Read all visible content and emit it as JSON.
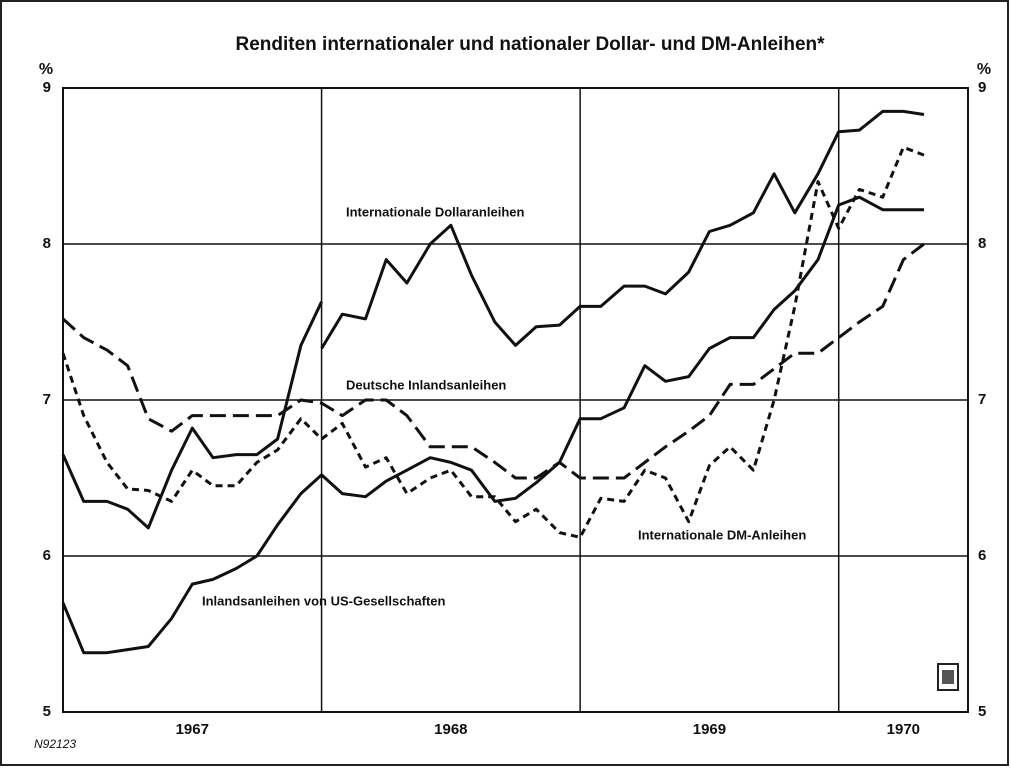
{
  "chart_data": {
    "type": "line",
    "title": "Renditen internationaler und nationaler Dollar- und DM-Anleihen*",
    "y_unit": "%",
    "note": "N92123",
    "xlim": [
      1967,
      1970.5
    ],
    "xticks": [
      {
        "value": 1967.5,
        "label": "1967"
      },
      {
        "value": 1968.5,
        "label": "1968"
      },
      {
        "value": 1969.5,
        "label": "1969"
      },
      {
        "value": 1970.25,
        "label": "1970"
      }
    ],
    "xgrid": [
      1968,
      1969,
      1970
    ],
    "ylim": [
      5,
      9
    ],
    "yticks": [
      5,
      6,
      7,
      8,
      9
    ],
    "grid": true,
    "x": [
      1967,
      1967.08,
      1967.17,
      1967.25,
      1967.33,
      1967.42,
      1967.5,
      1967.58,
      1967.67,
      1967.75,
      1967.83,
      1967.92,
      1968,
      1968.08,
      1968.17,
      1968.25,
      1968.33,
      1968.42,
      1968.5,
      1968.58,
      1968.67,
      1968.75,
      1968.83,
      1968.92,
      1969,
      1969.08,
      1969.17,
      1969.25,
      1969.33,
      1969.42,
      1969.5,
      1969.58,
      1969.67,
      1969.75,
      1969.83,
      1969.92,
      1970,
      1970.08,
      1970.17,
      1970.25,
      1970.33
    ],
    "series": [
      {
        "name": "Internationale Dollaranleihen",
        "color": "#111111",
        "style": "solid",
        "x": [
          1967,
          1967.08,
          1967.17,
          1967.25,
          1967.33,
          1967.42,
          1967.5,
          1967.58,
          1967.67,
          1967.75,
          1967.83,
          1967.92,
          1968,
          null,
          1968,
          1968.08,
          1968.17,
          1968.25,
          1968.33,
          1968.42,
          1968.5,
          1968.58,
          1968.67,
          1968.75,
          1968.83,
          1968.92,
          1969,
          1969.08,
          1969.17,
          1969.25,
          1969.33,
          1969.42,
          1969.5,
          1969.58,
          1969.67,
          1969.75,
          1969.83,
          1969.92,
          1970,
          1970.08,
          1970.17,
          1970.25,
          1970.33
        ],
        "values": [
          6.65,
          6.35,
          6.35,
          6.3,
          6.18,
          6.55,
          6.82,
          6.63,
          6.65,
          6.65,
          6.75,
          7.35,
          7.63,
          null,
          7.33,
          7.55,
          7.52,
          7.9,
          7.75,
          8.0,
          8.12,
          7.8,
          7.5,
          7.35,
          7.47,
          7.48,
          7.6,
          7.6,
          7.73,
          7.73,
          7.68,
          7.82,
          8.08,
          8.12,
          8.2,
          8.45,
          8.2,
          8.45,
          8.72,
          8.73,
          8.85,
          8.85,
          8.83
        ]
      },
      {
        "name": "Inlandsanleihen von US-Gesellschaften",
        "color": "#111111",
        "style": "solid",
        "values": [
          5.7,
          5.38,
          5.38,
          5.4,
          5.42,
          5.6,
          5.82,
          5.85,
          5.92,
          6.0,
          6.2,
          6.4,
          6.52,
          6.4,
          6.38,
          6.48,
          6.55,
          6.63,
          6.6,
          6.55,
          6.35,
          6.37,
          6.47,
          6.6,
          6.88,
          6.88,
          6.95,
          7.22,
          7.12,
          7.15,
          7.33,
          7.4,
          7.4,
          7.58,
          7.7,
          7.9,
          8.25,
          8.3,
          8.22,
          8.22,
          8.22
        ]
      },
      {
        "name": "Deutsche Inlandsanleihen",
        "color": "#111111",
        "style": "long-dash",
        "values": [
          7.52,
          7.4,
          7.32,
          7.22,
          6.88,
          6.8,
          6.9,
          6.9,
          6.9,
          6.9,
          6.9,
          7.0,
          6.98,
          6.9,
          7.0,
          7.0,
          6.9,
          6.7,
          6.7,
          6.7,
          6.6,
          6.5,
          6.5,
          6.6,
          6.5,
          6.5,
          6.5,
          6.6,
          6.7,
          6.8,
          6.9,
          7.1,
          7.1,
          7.2,
          7.3,
          7.3,
          7.4,
          7.5,
          7.6,
          7.9,
          8.0
        ]
      },
      {
        "name": "Internationale DM-Anleihen",
        "color": "#111111",
        "style": "short-dash",
        "values": [
          7.3,
          6.9,
          6.6,
          6.43,
          6.42,
          6.35,
          6.55,
          6.45,
          6.45,
          6.6,
          6.68,
          6.88,
          6.75,
          6.85,
          6.57,
          6.63,
          6.4,
          6.5,
          6.55,
          6.38,
          6.38,
          6.22,
          6.3,
          6.15,
          6.12,
          6.37,
          6.35,
          6.55,
          6.5,
          6.22,
          6.58,
          6.7,
          6.55,
          7.0,
          7.6,
          8.4,
          8.1,
          8.35,
          8.3,
          8.62,
          8.57
        ]
      }
    ]
  }
}
